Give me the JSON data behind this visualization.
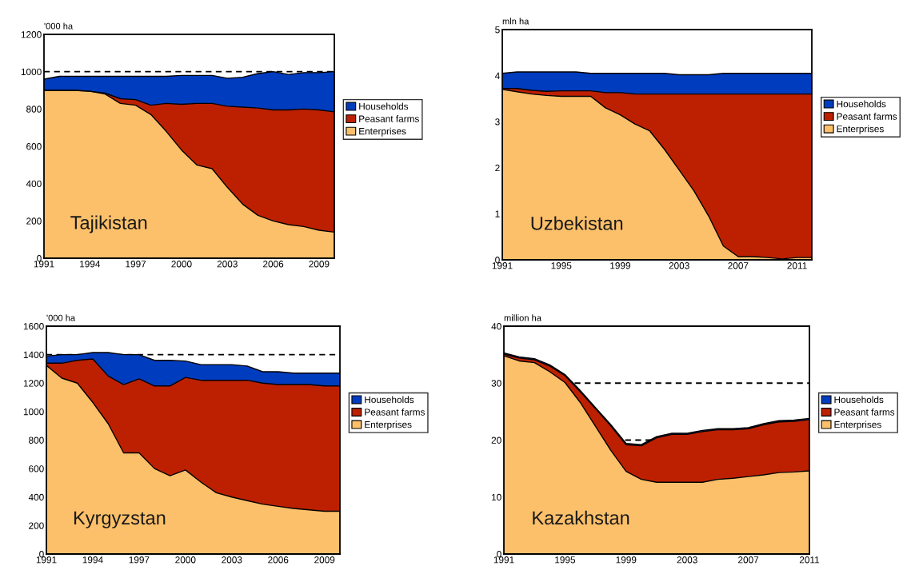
{
  "chart_data": [
    {
      "type": "area",
      "stacked": true,
      "ylabel": "'000 ha",
      "annotations": [
        "Tajikistan"
      ],
      "x": [
        1991,
        1992,
        1993,
        1994,
        1995,
        1996,
        1997,
        1998,
        1999,
        2000,
        2001,
        2002,
        2003,
        2004,
        2005,
        2006,
        2007,
        2008,
        2009,
        2010
      ],
      "xlim": [
        1991,
        2010
      ],
      "xticks": [
        1991,
        1994,
        1997,
        2000,
        2003,
        2006,
        2009
      ],
      "ylim": [
        0,
        1200
      ],
      "yticks": [
        0,
        200,
        400,
        600,
        800,
        1000,
        1200
      ],
      "legend": "right",
      "ref_lines": [
        {
          "axis": "y",
          "value": 1000,
          "color": "#000000",
          "line_style": "dashed"
        }
      ],
      "series": [
        {
          "name": "Enterprises",
          "color": "#fdc06a",
          "values": [
            900,
            900,
            900,
            895,
            880,
            830,
            820,
            770,
            680,
            580,
            500,
            480,
            380,
            290,
            230,
            200,
            180,
            170,
            150,
            140
          ]
        },
        {
          "name": "Peasant farms",
          "color": "#bd2000",
          "values": [
            0,
            0,
            0,
            0,
            5,
            25,
            30,
            50,
            150,
            245,
            330,
            350,
            435,
            520,
            575,
            595,
            615,
            630,
            645,
            645
          ]
        },
        {
          "name": "Households",
          "color": "#003cbe",
          "values": [
            60,
            75,
            75,
            80,
            90,
            120,
            125,
            155,
            145,
            155,
            150,
            150,
            150,
            160,
            185,
            205,
            190,
            195,
            200,
            215
          ]
        }
      ]
    },
    {
      "type": "area",
      "stacked": true,
      "ylabel": "mln ha",
      "annotations": [
        "Uzbekistan"
      ],
      "x": [
        1991,
        1992,
        1993,
        1994,
        1995,
        1996,
        1997,
        1998,
        1999,
        2000,
        2001,
        2002,
        2003,
        2004,
        2005,
        2006,
        2007,
        2008,
        2009,
        2010,
        2011,
        2012
      ],
      "xlim": [
        1991,
        2012
      ],
      "xticks": [
        1991,
        1995,
        1999,
        2003,
        2007,
        2011
      ],
      "ylim": [
        0,
        5
      ],
      "yticks": [
        0,
        1,
        2,
        3,
        4,
        5
      ],
      "legend": "right",
      "series": [
        {
          "name": "Enterprises",
          "color": "#fdc06a",
          "values": [
            3.7,
            3.65,
            3.6,
            3.57,
            3.55,
            3.55,
            3.55,
            3.3,
            3.15,
            2.95,
            2.8,
            2.4,
            1.95,
            1.5,
            0.95,
            0.3,
            0.07,
            0.07,
            0.05,
            0.02,
            0.05,
            0.05
          ]
        },
        {
          "name": "Peasant farms",
          "color": "#bd2000",
          "values": [
            0.02,
            0.07,
            0.08,
            0.09,
            0.12,
            0.12,
            0.12,
            0.33,
            0.48,
            0.65,
            0.8,
            1.2,
            1.65,
            2.1,
            2.65,
            3.3,
            3.53,
            3.53,
            3.55,
            3.58,
            3.55,
            3.55
          ]
        },
        {
          "name": "Households",
          "color": "#003cbe",
          "values": [
            0.33,
            0.36,
            0.4,
            0.42,
            0.41,
            0.41,
            0.38,
            0.42,
            0.42,
            0.45,
            0.45,
            0.45,
            0.42,
            0.42,
            0.42,
            0.45,
            0.45,
            0.45,
            0.45,
            0.45,
            0.45,
            0.45
          ]
        }
      ]
    },
    {
      "type": "area",
      "stacked": true,
      "ylabel": "'000 ha",
      "annotations": [
        "Kyrgyzstan"
      ],
      "x": [
        1991,
        1992,
        1993,
        1994,
        1995,
        1996,
        1997,
        1998,
        1999,
        2000,
        2001,
        2002,
        2003,
        2004,
        2005,
        2006,
        2007,
        2008,
        2009,
        2010
      ],
      "xlim": [
        1991,
        2010
      ],
      "xticks": [
        1991,
        1994,
        1997,
        2000,
        2003,
        2006,
        2009
      ],
      "ylim": [
        0,
        1600
      ],
      "yticks": [
        0,
        200,
        400,
        600,
        800,
        1000,
        1200,
        1400,
        1600
      ],
      "legend": "right",
      "ref_lines": [
        {
          "axis": "y",
          "value": 1400,
          "color": "#000000",
          "line_style": "dashed"
        }
      ],
      "series": [
        {
          "name": "Enterprises",
          "color": "#fdc06a",
          "values": [
            1325,
            1235,
            1200,
            1065,
            915,
            710,
            710,
            600,
            550,
            590,
            505,
            430,
            400,
            375,
            350,
            335,
            320,
            310,
            300,
            300
          ]
        },
        {
          "name": "Peasant farms",
          "color": "#bd2000",
          "values": [
            15,
            105,
            160,
            305,
            335,
            480,
            520,
            580,
            630,
            650,
            715,
            790,
            820,
            845,
            850,
            855,
            870,
            880,
            880,
            880
          ]
        },
        {
          "name": "Households",
          "color": "#003cbe",
          "values": [
            50,
            60,
            40,
            45,
            165,
            210,
            170,
            180,
            180,
            115,
            110,
            110,
            110,
            100,
            80,
            90,
            80,
            80,
            90,
            90
          ]
        }
      ]
    },
    {
      "type": "area",
      "stacked": true,
      "ylabel": "million ha",
      "annotations": [
        "Kazakhstan"
      ],
      "x": [
        1991,
        1992,
        1993,
        1994,
        1995,
        1996,
        1997,
        1998,
        1999,
        2000,
        2001,
        2002,
        2003,
        2004,
        2005,
        2006,
        2007,
        2008,
        2009,
        2010,
        2011
      ],
      "xlim": [
        1991,
        2011
      ],
      "xticks": [
        1991,
        1995,
        1999,
        2003,
        2007,
        2011
      ],
      "ylim": [
        0,
        40
      ],
      "yticks": [
        0,
        10,
        20,
        30,
        40
      ],
      "legend": "right",
      "ref_lines": [
        {
          "axis": "y",
          "value": 30,
          "color": "#000000",
          "line_style": "dashed"
        },
        {
          "axis": "y",
          "value": 20,
          "color": "#000000",
          "line_style": "dashed"
        }
      ],
      "series": [
        {
          "name": "Enterprises",
          "color": "#fdc06a",
          "values": [
            34.8,
            33.9,
            33.6,
            32.0,
            30.1,
            26.6,
            22.4,
            18.2,
            14.5,
            13.1,
            12.6,
            12.6,
            12.6,
            12.6,
            13.1,
            13.3,
            13.6,
            13.9,
            14.3,
            14.4,
            14.6
          ]
        },
        {
          "name": "Peasant farms",
          "color": "#bd2000",
          "values": [
            0.3,
            0.5,
            0.5,
            1.0,
            1.2,
            1.9,
            3.1,
            4.3,
            4.7,
            5.9,
            7.8,
            8.4,
            8.4,
            8.9,
            8.7,
            8.5,
            8.4,
            8.8,
            8.9,
            8.9,
            9.0
          ]
        },
        {
          "name": "Households",
          "color": "#003cbe",
          "values": [
            0.2,
            0.2,
            0.2,
            0.2,
            0.2,
            0.2,
            0.2,
            0.2,
            0.2,
            0.2,
            0.2,
            0.2,
            0.2,
            0.2,
            0.2,
            0.2,
            0.2,
            0.2,
            0.2,
            0.2,
            0.2
          ]
        }
      ]
    }
  ]
}
